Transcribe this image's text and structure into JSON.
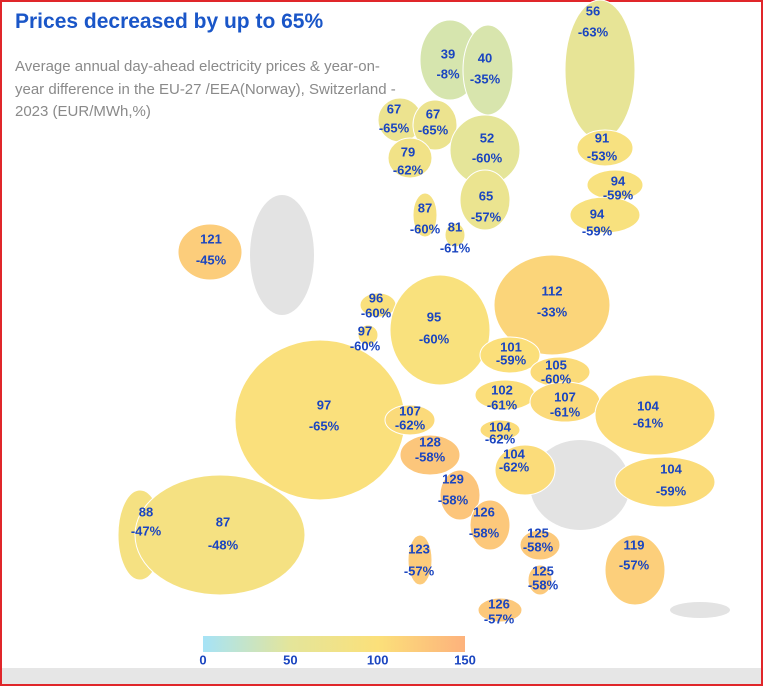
{
  "title": "Prices decreased by up to 65%",
  "subtitle": "Average annual day-ahead electricity prices & year-on-year difference in the EU-27 /EEA(Norway), Switzerland - 2023 (EUR/MWh,%)",
  "colorbar": {
    "ticks": [
      0,
      50,
      100,
      150
    ],
    "colors": [
      "#a6e3f7",
      "#e4e59a",
      "#fbe07a",
      "#fdb27c"
    ]
  },
  "regions": [
    {
      "price": 56,
      "change": "-63%"
    },
    {
      "price": 39,
      "change": "-8%"
    },
    {
      "price": 40,
      "change": "-35%"
    },
    {
      "price": 67,
      "change": "-65%"
    },
    {
      "price": 67,
      "change": "-65%"
    },
    {
      "price": 79,
      "change": "-62%"
    },
    {
      "price": 52,
      "change": "-60%"
    },
    {
      "price": 91,
      "change": "-53%"
    },
    {
      "price": 94,
      "change": "-59%"
    },
    {
      "price": 94,
      "change": "-59%"
    },
    {
      "price": 65,
      "change": "-57%"
    },
    {
      "price": 87,
      "change": "-60%"
    },
    {
      "price": 81,
      "change": "-61%"
    },
    {
      "price": 121,
      "change": "-45%"
    },
    {
      "price": 112,
      "change": "-33%"
    },
    {
      "price": 96,
      "change": "-60%"
    },
    {
      "price": 97,
      "change": "-60%"
    },
    {
      "price": 95,
      "change": "-60%"
    },
    {
      "price": 101,
      "change": "-59%"
    },
    {
      "price": 105,
      "change": "-60%"
    },
    {
      "price": 102,
      "change": "-61%"
    },
    {
      "price": 107,
      "change": "-61%"
    },
    {
      "price": 104,
      "change": "-61%"
    },
    {
      "price": 97,
      "change": "-65%"
    },
    {
      "price": 107,
      "change": "-62%"
    },
    {
      "price": 128,
      "change": "-58%"
    },
    {
      "price": 104,
      "change": "-62%"
    },
    {
      "price": 104,
      "change": "-62%"
    },
    {
      "price": 104,
      "change": "-59%"
    },
    {
      "price": 129,
      "change": "-58%"
    },
    {
      "price": 126,
      "change": "-58%"
    },
    {
      "price": 88,
      "change": "-47%"
    },
    {
      "price": 87,
      "change": "-48%"
    },
    {
      "price": 125,
      "change": "-58%"
    },
    {
      "price": 119,
      "change": "-57%"
    },
    {
      "price": 123,
      "change": "-57%"
    },
    {
      "price": 125,
      "change": "-58%"
    },
    {
      "price": 126,
      "change": "-57%"
    }
  ]
}
